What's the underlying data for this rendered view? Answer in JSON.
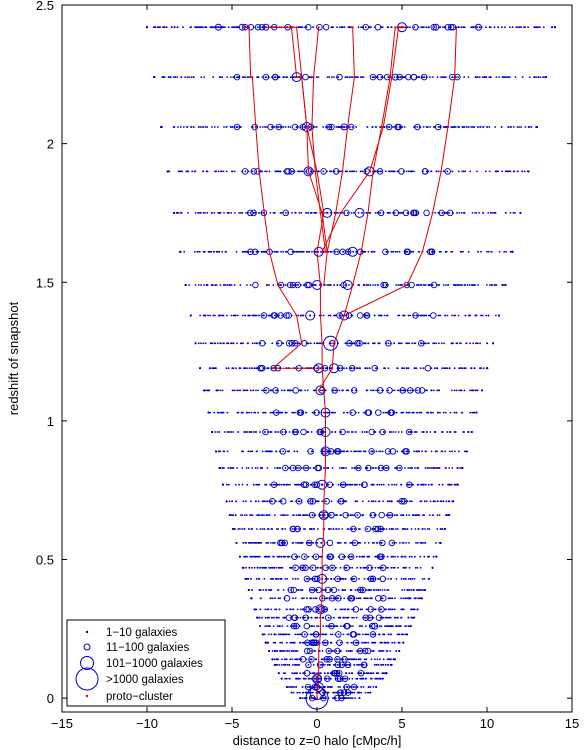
{
  "chart_data": {
    "type": "scatter",
    "title": "",
    "xlabel": "distance to z=0 halo [cMpc/h]",
    "ylabel": "redshift of snapshot",
    "xlim": [
      -15,
      15
    ],
    "ylim": [
      -0.05,
      2.5
    ],
    "xticks": [
      -15,
      -10,
      -5,
      0,
      5,
      10,
      15
    ],
    "yticks": [
      0,
      0.5,
      1,
      1.5,
      2,
      2.5
    ],
    "xtick_labels": [
      "−15",
      "−10",
      "−5",
      "0",
      "5",
      "10",
      "15"
    ],
    "ytick_labels": [
      "0",
      "0.5",
      "1",
      "1.5",
      "2",
      "2.5"
    ],
    "grid": false,
    "legend": {
      "placement": "bottom-left",
      "entries": [
        {
          "label": "1−10 galaxies",
          "marker": "dot",
          "color": "#0000cc"
        },
        {
          "label": "11−100 galaxies",
          "marker": "circle-small",
          "color": "#0000cc"
        },
        {
          "label": "101−1000 galaxies",
          "marker": "circle-medium",
          "color": "#0000cc"
        },
        {
          "label": ">1000 galaxies",
          "marker": "circle-large",
          "color": "#0000cc"
        },
        {
          "label": "proto−cluster",
          "marker": "dot",
          "color": "#dd0000"
        }
      ]
    },
    "snapshot_redshifts": [
      0.0,
      0.02,
      0.04,
      0.07,
      0.09,
      0.12,
      0.14,
      0.17,
      0.2,
      0.23,
      0.26,
      0.29,
      0.32,
      0.36,
      0.39,
      0.43,
      0.47,
      0.51,
      0.56,
      0.61,
      0.66,
      0.71,
      0.77,
      0.83,
      0.89,
      0.96,
      1.03,
      1.11,
      1.19,
      1.28,
      1.38,
      1.49,
      1.61,
      1.75,
      1.9,
      2.06,
      2.24,
      2.42
    ],
    "snapshot_x_extent": {
      "description_units": "cMpc/h",
      "min_at_top": -10.0,
      "max_at_top": 14.0,
      "min_at_bottom": -1.0,
      "max_at_bottom": 2.5
    },
    "circles": [
      {
        "x": 0.0,
        "z": 0.0,
        "size": "xlarge"
      },
      {
        "x": 0.0,
        "z": 0.02,
        "size": "large"
      },
      {
        "x": 0.1,
        "z": 0.04,
        "size": "medium"
      },
      {
        "x": 0.0,
        "z": 0.07,
        "size": "medium"
      },
      {
        "x": 0.2,
        "z": 0.12,
        "size": "small"
      },
      {
        "x": -0.2,
        "z": 0.2,
        "size": "small"
      },
      {
        "x": 3.4,
        "z": 0.26,
        "size": "small"
      },
      {
        "x": 0.2,
        "z": 0.32,
        "size": "medium"
      },
      {
        "x": 0.3,
        "z": 0.43,
        "size": "medium"
      },
      {
        "x": 0.2,
        "z": 0.56,
        "size": "medium"
      },
      {
        "x": 0.4,
        "z": 0.66,
        "size": "medium"
      },
      {
        "x": 0.3,
        "z": 0.77,
        "size": "medium"
      },
      {
        "x": 0.5,
        "z": 0.89,
        "size": "medium"
      },
      {
        "x": 0.5,
        "z": 0.96,
        "size": "medium"
      },
      {
        "x": 0.5,
        "z": 1.03,
        "size": "medium"
      },
      {
        "x": 0.2,
        "z": 1.11,
        "size": "medium"
      },
      {
        "x": 0.1,
        "z": 1.19,
        "size": "medium"
      },
      {
        "x": 1.0,
        "z": 1.19,
        "size": "medium"
      },
      {
        "x": 0.8,
        "z": 1.28,
        "size": "large"
      },
      {
        "x": -0.4,
        "z": 1.38,
        "size": "medium"
      },
      {
        "x": 1.6,
        "z": 1.38,
        "size": "medium"
      },
      {
        "x": 0.0,
        "z": 1.49,
        "size": "medium"
      },
      {
        "x": 1.8,
        "z": 1.49,
        "size": "medium"
      },
      {
        "x": 0.1,
        "z": 1.61,
        "size": "medium"
      },
      {
        "x": 2.1,
        "z": 1.61,
        "size": "medium"
      },
      {
        "x": 0.6,
        "z": 1.75,
        "size": "medium"
      },
      {
        "x": 2.5,
        "z": 1.75,
        "size": "medium"
      },
      {
        "x": -0.5,
        "z": 1.9,
        "size": "medium"
      },
      {
        "x": 3.1,
        "z": 1.9,
        "size": "medium"
      },
      {
        "x": -0.6,
        "z": 2.06,
        "size": "medium"
      },
      {
        "x": 1.6,
        "z": 2.06,
        "size": "small"
      },
      {
        "x": -1.2,
        "z": 2.24,
        "size": "medium"
      },
      {
        "x": 4.6,
        "z": 2.24,
        "size": "small"
      },
      {
        "x": 5.0,
        "z": 2.42,
        "size": "medium"
      },
      {
        "x": -5.8,
        "z": 2.42,
        "size": "small"
      },
      {
        "x": -4.4,
        "z": 2.42,
        "size": "small"
      },
      {
        "x": -3.0,
        "z": 2.42,
        "size": "small"
      },
      {
        "x": 7.0,
        "z": 2.42,
        "size": "small"
      },
      {
        "x": 9.5,
        "z": 2.42,
        "size": "small"
      }
    ],
    "proto_cluster_tracks": [
      {
        "x": [
          0.0,
          0.0,
          0.05,
          0.0,
          0.1,
          0.1,
          0.1,
          0.2,
          0.2,
          0.3,
          0.3,
          0.3,
          0.4,
          0.4,
          0.5,
          0.5,
          0.5,
          0.4,
          0.3,
          0.3,
          0.2,
          0.2,
          0.0,
          0.4,
          0.0,
          -0.6,
          -0.6,
          -0.9,
          -1.2,
          -1.6,
          -2.1,
          -2.6,
          -3.0
        ],
        "z": [
          0.0,
          0.02,
          0.04,
          0.07,
          0.09,
          0.12,
          0.17,
          0.23,
          0.29,
          0.36,
          0.43,
          0.51,
          0.61,
          0.71,
          0.83,
          0.96,
          1.03,
          1.11,
          1.19,
          1.28,
          1.38,
          1.49,
          1.61,
          1.75,
          1.9,
          2.06,
          2.06,
          2.24,
          2.42,
          2.42,
          2.42,
          2.42,
          2.42
        ]
      },
      {
        "x": [
          0.1,
          0.9,
          1.0,
          1.6,
          2.1,
          2.6,
          3.0,
          3.3,
          3.8,
          4.3,
          4.6,
          4.9,
          5.0
        ],
        "z": [
          1.11,
          1.19,
          1.28,
          1.38,
          1.49,
          1.61,
          1.75,
          1.9,
          2.06,
          2.24,
          2.42,
          2.42,
          2.42
        ]
      },
      {
        "x": [
          0.1,
          -2.6,
          -0.9,
          -1.2,
          -2.3,
          -2.8,
          -3.1,
          -3.4,
          -3.6,
          -3.8,
          -3.9,
          -4.0,
          -4.3
        ],
        "z": [
          1.19,
          1.19,
          1.28,
          1.38,
          1.49,
          1.61,
          1.75,
          1.9,
          2.06,
          2.24,
          2.24,
          2.42,
          2.42
        ]
      },
      {
        "x": [
          1.6,
          5.3,
          6.2,
          6.8,
          7.3,
          7.7,
          8.1,
          8.2
        ],
        "z": [
          1.38,
          1.49,
          1.61,
          1.75,
          1.9,
          2.06,
          2.24,
          2.42
        ]
      },
      {
        "x": [
          0.4,
          0.6,
          0.3,
          -0.5,
          -0.6,
          -0.9,
          -1.2,
          -1.5
        ],
        "z": [
          1.49,
          1.61,
          1.75,
          1.9,
          2.06,
          2.24,
          2.24,
          2.42
        ]
      },
      {
        "x": [
          0.6,
          1.1,
          1.5,
          1.8,
          2.2,
          2.1,
          2.0
        ],
        "z": [
          1.61,
          1.75,
          1.9,
          2.06,
          2.24,
          2.42,
          2.42
        ]
      },
      {
        "x": [
          0.3,
          1.4,
          3.1,
          3.9,
          4.4,
          4.8,
          5.0,
          5.1
        ],
        "z": [
          1.61,
          1.75,
          1.9,
          2.06,
          2.24,
          2.42,
          2.42,
          2.42
        ]
      },
      {
        "x": [
          0.5,
          0.2,
          -0.1,
          -0.3,
          -0.2,
          0.1
        ],
        "z": [
          1.61,
          1.75,
          1.9,
          2.06,
          2.24,
          2.42
        ]
      }
    ],
    "colors": {
      "galaxies": "#0000cc",
      "proto_cluster": "#dd0000",
      "axes": "#000000"
    }
  }
}
